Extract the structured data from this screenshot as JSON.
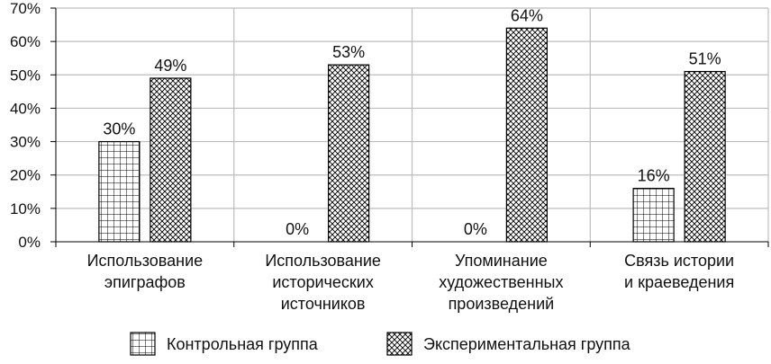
{
  "chart_data": {
    "type": "bar",
    "categories": [
      [
        "Использование",
        "эпиграфов"
      ],
      [
        "Использование",
        "исторических",
        "источников"
      ],
      [
        "Упоминание",
        "художественных",
        "произведений"
      ],
      [
        "Связь истории",
        "и краеведения"
      ]
    ],
    "series": [
      {
        "name": "Контрольная группа",
        "values": [
          30,
          0,
          0,
          16
        ],
        "labels": [
          "30%",
          "0%",
          "0%",
          "16%"
        ],
        "pattern": "grid"
      },
      {
        "name": "Экспериментальная группа",
        "values": [
          49,
          53,
          64,
          51
        ],
        "labels": [
          "49%",
          "53%",
          "64%",
          "51%"
        ],
        "pattern": "crosshatch"
      }
    ],
    "ylim": [
      0,
      70
    ],
    "yticks": [
      {
        "value": 0,
        "label": "0%"
      },
      {
        "value": 10,
        "label": "10%"
      },
      {
        "value": 20,
        "label": "20%"
      },
      {
        "value": 30,
        "label": "30%"
      },
      {
        "value": 40,
        "label": "40%"
      },
      {
        "value": 50,
        "label": "50%"
      },
      {
        "value": 60,
        "label": "60%"
      },
      {
        "value": 70,
        "label": "70%"
      }
    ],
    "grid": true,
    "legend_position": "bottom",
    "colors": {
      "bar_stroke": "#000000",
      "grid": "#bdbdbd",
      "axis": "#000000",
      "background": "#ffffff"
    }
  }
}
